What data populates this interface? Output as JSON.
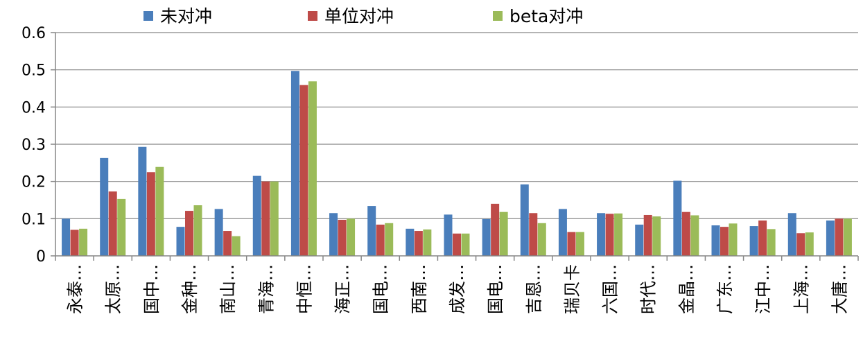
{
  "chart_data": {
    "type": "bar",
    "categories": [
      "永泰…",
      "太原…",
      "国中…",
      "金种…",
      "南山…",
      "青海…",
      "中恒…",
      "海正…",
      "国电…",
      "西南…",
      "成发…",
      "国电…",
      "吉恩…",
      "瑞贝卡",
      "六国…",
      "时代…",
      "金晶…",
      "广东…",
      "江中…",
      "上海…",
      "大唐…"
    ],
    "series": [
      {
        "name": "未对冲",
        "color": "#4a7ebb",
        "values": [
          0.1,
          0.263,
          0.293,
          0.078,
          0.126,
          0.215,
          0.497,
          0.115,
          0.134,
          0.073,
          0.111,
          0.099,
          0.192,
          0.126,
          0.115,
          0.084,
          0.202,
          0.082,
          0.08,
          0.115,
          0.095
        ]
      },
      {
        "name": "单位对冲",
        "color": "#be4b48",
        "values": [
          0.07,
          0.173,
          0.225,
          0.121,
          0.067,
          0.2,
          0.459,
          0.097,
          0.084,
          0.067,
          0.06,
          0.14,
          0.115,
          0.064,
          0.113,
          0.11,
          0.118,
          0.078,
          0.095,
          0.061,
          0.1
        ]
      },
      {
        "name": "beta对冲",
        "color": "#9bbb59",
        "values": [
          0.073,
          0.153,
          0.239,
          0.136,
          0.053,
          0.2,
          0.469,
          0.1,
          0.088,
          0.071,
          0.06,
          0.118,
          0.088,
          0.064,
          0.114,
          0.106,
          0.109,
          0.087,
          0.072,
          0.063,
          0.1
        ]
      }
    ],
    "ylim": [
      0,
      0.6
    ],
    "yticks": [
      "0",
      "0.1",
      "0.2",
      "0.3",
      "0.4",
      "0.5",
      "0.6"
    ],
    "grid": true,
    "legend_position": "top"
  }
}
